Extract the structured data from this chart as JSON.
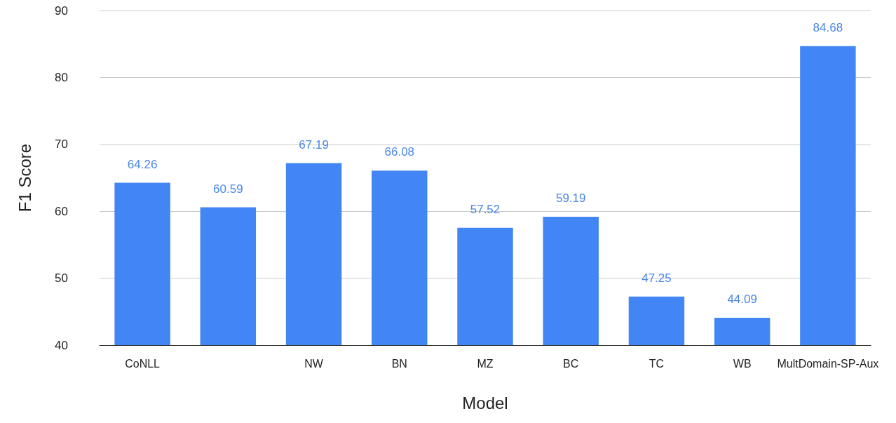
{
  "chart_data": {
    "type": "bar",
    "xlabel": "Model",
    "ylabel": "F1 Score",
    "categories": [
      "CoNLL",
      null,
      "NW",
      "BN",
      "MZ",
      "BC",
      "TC",
      "WB",
      "MultDomain-SP-Aux"
    ],
    "values": [
      64.26,
      60.59,
      67.19,
      66.08,
      57.52,
      59.19,
      47.25,
      44.09,
      84.68
    ],
    "color": "#4285f4",
    "data_labels": true,
    "ylim": [
      40,
      90
    ],
    "yticks": [
      40,
      50,
      60,
      70,
      80,
      90
    ],
    "grid": "y"
  }
}
